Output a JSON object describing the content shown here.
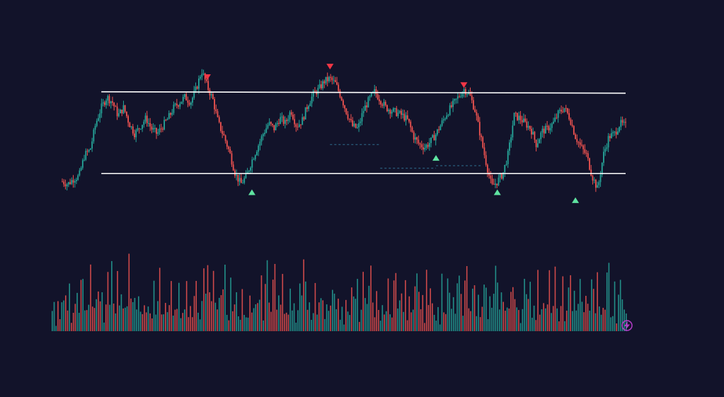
{
  "colors": {
    "background": "#12132a",
    "up": "#26a69a",
    "down": "#ef5350",
    "level_line": "#ffffff",
    "signal_buy": "#5fe3a1",
    "signal_sell": "#f23645",
    "dashed_level": "#2f6f8f",
    "logo_accent": "#b43cc8"
  },
  "chart_data": [
    {
      "type": "candlestick",
      "title": "",
      "xlabel": "",
      "ylabel": "",
      "axes_visible": false,
      "grid": false,
      "legend": "none",
      "ylim": [
        0,
        100
      ],
      "series_close_path": [
        [
          0,
          8
        ],
        [
          2,
          6
        ],
        [
          4,
          10
        ],
        [
          6,
          12
        ],
        [
          8,
          28
        ],
        [
          10,
          32
        ],
        [
          12,
          52
        ],
        [
          14,
          64
        ],
        [
          16,
          72
        ],
        [
          18,
          68
        ],
        [
          20,
          58
        ],
        [
          22,
          64
        ],
        [
          24,
          52
        ],
        [
          26,
          44
        ],
        [
          28,
          50
        ],
        [
          30,
          56
        ],
        [
          32,
          48
        ],
        [
          34,
          44
        ],
        [
          36,
          50
        ],
        [
          38,
          56
        ],
        [
          40,
          64
        ],
        [
          42,
          68
        ],
        [
          44,
          72
        ],
        [
          46,
          68
        ],
        [
          48,
          78
        ],
        [
          50,
          92
        ],
        [
          52,
          80
        ],
        [
          54,
          70
        ],
        [
          56,
          52
        ],
        [
          58,
          42
        ],
        [
          60,
          30
        ],
        [
          62,
          14
        ],
        [
          64,
          6
        ],
        [
          66,
          12
        ],
        [
          68,
          24
        ],
        [
          70,
          34
        ],
        [
          72,
          44
        ],
        [
          74,
          52
        ],
        [
          76,
          48
        ],
        [
          78,
          56
        ],
        [
          80,
          52
        ],
        [
          82,
          62
        ],
        [
          84,
          50
        ],
        [
          86,
          54
        ],
        [
          88,
          66
        ],
        [
          90,
          74
        ],
        [
          92,
          78
        ],
        [
          94,
          84
        ],
        [
          96,
          86
        ],
        [
          98,
          82
        ],
        [
          100,
          72
        ],
        [
          102,
          60
        ],
        [
          104,
          50
        ],
        [
          106,
          48
        ],
        [
          108,
          62
        ],
        [
          110,
          70
        ],
        [
          112,
          76
        ],
        [
          114,
          70
        ],
        [
          116,
          64
        ],
        [
          118,
          62
        ],
        [
          120,
          60
        ],
        [
          122,
          58
        ],
        [
          124,
          54
        ],
        [
          126,
          42
        ],
        [
          128,
          36
        ],
        [
          130,
          34
        ],
        [
          132,
          38
        ],
        [
          134,
          44
        ],
        [
          136,
          52
        ],
        [
          138,
          60
        ],
        [
          140,
          66
        ],
        [
          142,
          72
        ],
        [
          144,
          78
        ],
        [
          146,
          74
        ],
        [
          148,
          62
        ],
        [
          150,
          42
        ],
        [
          152,
          22
        ],
        [
          154,
          4
        ],
        [
          156,
          8
        ],
        [
          158,
          14
        ],
        [
          160,
          30
        ],
        [
          162,
          58
        ],
        [
          164,
          56
        ],
        [
          166,
          52
        ],
        [
          168,
          48
        ],
        [
          170,
          36
        ],
        [
          172,
          46
        ],
        [
          174,
          48
        ],
        [
          176,
          52
        ],
        [
          178,
          60
        ],
        [
          180,
          64
        ],
        [
          182,
          56
        ],
        [
          184,
          42
        ],
        [
          186,
          34
        ],
        [
          188,
          28
        ],
        [
          190,
          12
        ],
        [
          192,
          2
        ],
        [
          194,
          28
        ],
        [
          196,
          42
        ],
        [
          198,
          44
        ],
        [
          200,
          52
        ],
        [
          202,
          50
        ]
      ]
    },
    {
      "type": "bar",
      "title": "",
      "ylabel": "",
      "axes_visible": false,
      "ylim": [
        0,
        100
      ],
      "values_pattern": [
        22,
        28,
        12,
        55,
        18,
        30,
        72,
        40,
        34,
        58,
        20,
        44,
        64,
        36,
        28,
        48,
        70,
        26,
        32,
        52,
        60,
        24,
        38,
        30,
        46,
        56,
        42,
        20,
        50,
        62,
        34,
        80,
        44,
        30,
        58,
        26,
        40,
        46,
        32,
        54,
        72,
        36,
        28,
        48,
        22,
        62,
        50,
        38,
        30,
        44
      ]
    }
  ],
  "range_levels": [
    {
      "name": "resistance",
      "y": 76,
      "x_start": 14,
      "x_end": 202
    },
    {
      "name": "support",
      "y": 14,
      "x_start": 14,
      "x_end": 202
    }
  ],
  "signals": [
    {
      "kind": "sell",
      "x": 52,
      "y": 86
    },
    {
      "kind": "buy",
      "x": 68,
      "y": 2
    },
    {
      "kind": "sell",
      "x": 96,
      "y": 94
    },
    {
      "kind": "buy",
      "x": 134,
      "y": 28
    },
    {
      "kind": "sell",
      "x": 144,
      "y": 80
    },
    {
      "kind": "buy",
      "x": 156,
      "y": 2
    },
    {
      "kind": "buy",
      "x": 184,
      "y": -4
    }
  ],
  "logo": {
    "name": "lightning-bolt-icon"
  }
}
